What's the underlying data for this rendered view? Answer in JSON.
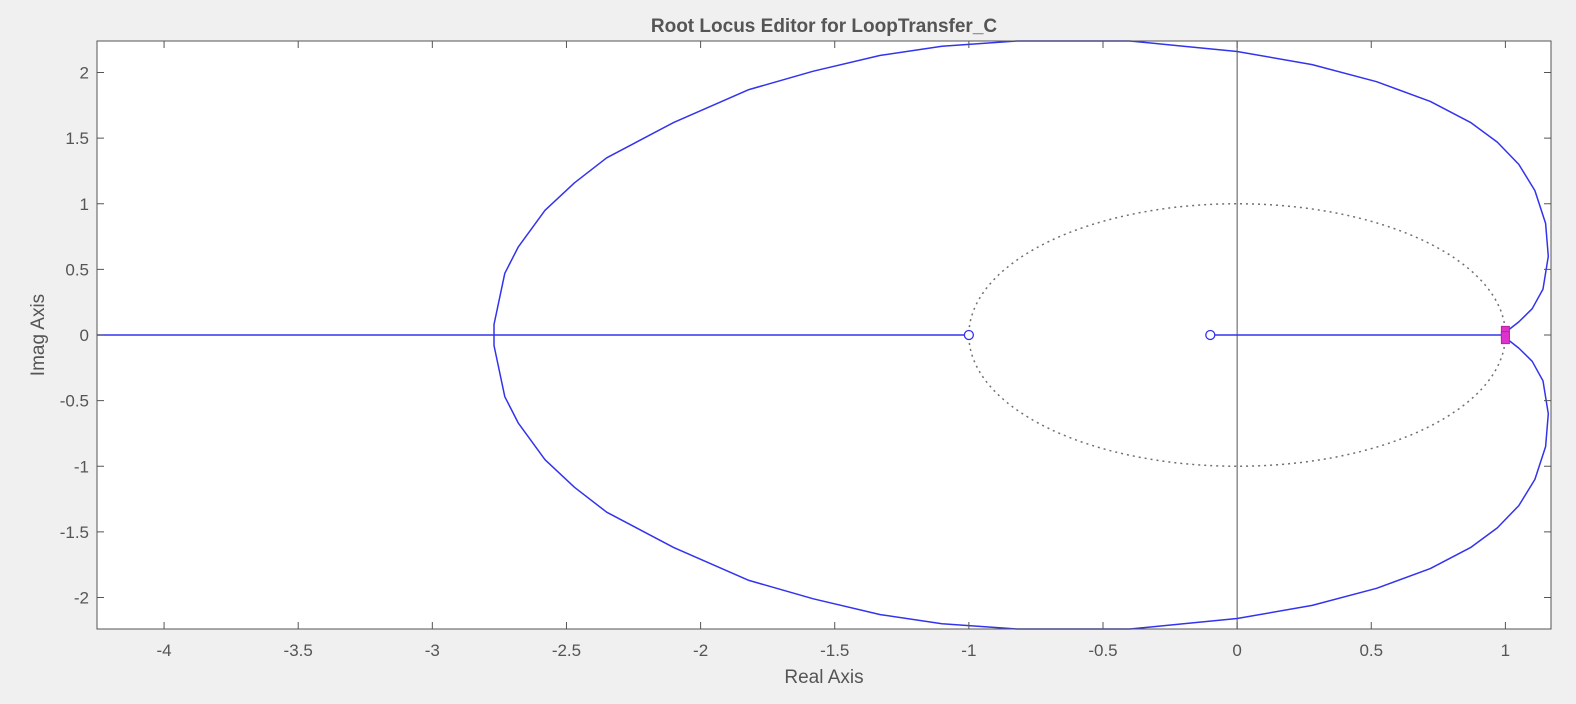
{
  "chart_data": {
    "type": "line",
    "title": "Root Locus Editor for LoopTransfer_C",
    "xlabel": "Real Axis",
    "ylabel": "Imag Axis",
    "xlim": [
      -4.25,
      1.17
    ],
    "ylim": [
      -2.24,
      2.24
    ],
    "xticks": [
      -4,
      -3.5,
      -3,
      -2.5,
      -2,
      -1.5,
      -1,
      -0.5,
      0,
      0.5,
      1
    ],
    "xtick_labels": [
      "-4",
      "-3.5",
      "-3",
      "-2.5",
      "-2",
      "-1.5",
      "-1",
      "-0.5",
      "0",
      "0.5",
      "1"
    ],
    "yticks": [
      2,
      1.5,
      1,
      0.5,
      0,
      -0.5,
      -1,
      -1.5,
      -2
    ],
    "ytick_labels": [
      "2",
      "1.5",
      "1",
      "0.5",
      "0",
      "-0.5",
      "-1",
      "-1.5",
      "-2"
    ],
    "grid": false,
    "colors": {
      "locus": "#3333ee",
      "closed_loop_poles": "#dd33cc",
      "unit_circle": "#707070",
      "axes": "#555555",
      "background": "#f0f0f0",
      "plot_area": "#ffffff"
    },
    "unit_circle": {
      "center": [
        0,
        0
      ],
      "radius": 1,
      "style": "dotted"
    },
    "imag_axis_line": {
      "x": 0
    },
    "zeros": [
      {
        "x": -1,
        "y": 0
      },
      {
        "x": -0.1,
        "y": 0
      }
    ],
    "closed_loop_poles": [
      {
        "x": 1.0,
        "y": 0.02
      },
      {
        "x": 1.0,
        "y": -0.02
      }
    ],
    "series": [
      {
        "values": [
          [
            -4.25,
            0
          ],
          [
            -1,
            0
          ]
        ]
      },
      {
        "values": [
          [
            -0.1,
            0
          ],
          [
            1.0,
            0
          ]
        ]
      },
      {
        "values": [
          [
            1.0,
            0.02
          ],
          [
            1.05,
            0.1
          ],
          [
            1.1,
            0.2
          ],
          [
            1.14,
            0.35
          ],
          [
            1.16,
            0.6
          ],
          [
            1.15,
            0.85
          ],
          [
            1.11,
            1.1
          ],
          [
            1.05,
            1.3
          ],
          [
            0.97,
            1.47
          ],
          [
            0.87,
            1.62
          ],
          [
            0.72,
            1.78
          ],
          [
            0.52,
            1.93
          ],
          [
            0.28,
            2.06
          ],
          [
            0.0,
            2.16
          ],
          [
            -0.2,
            2.2
          ],
          [
            -0.4,
            2.24
          ],
          [
            -0.82,
            2.24
          ],
          [
            -1.1,
            2.2
          ],
          [
            -1.33,
            2.13
          ],
          [
            -1.58,
            2.01
          ],
          [
            -1.82,
            1.87
          ],
          [
            -2.1,
            1.62
          ],
          [
            -2.35,
            1.35
          ],
          [
            -2.47,
            1.16
          ],
          [
            -2.58,
            0.95
          ],
          [
            -2.68,
            0.67
          ],
          [
            -2.73,
            0.47
          ],
          [
            -2.77,
            0.08
          ],
          [
            -2.77,
            0
          ]
        ]
      },
      {
        "values": [
          [
            1.0,
            -0.02
          ],
          [
            1.05,
            -0.1
          ],
          [
            1.1,
            -0.2
          ],
          [
            1.14,
            -0.35
          ],
          [
            1.16,
            -0.6
          ],
          [
            1.15,
            -0.85
          ],
          [
            1.11,
            -1.1
          ],
          [
            1.05,
            -1.3
          ],
          [
            0.97,
            -1.47
          ],
          [
            0.87,
            -1.62
          ],
          [
            0.72,
            -1.78
          ],
          [
            0.52,
            -1.93
          ],
          [
            0.28,
            -2.06
          ],
          [
            0.0,
            -2.16
          ],
          [
            -0.2,
            -2.2
          ],
          [
            -0.4,
            -2.24
          ],
          [
            -0.82,
            -2.24
          ],
          [
            -1.1,
            -2.2
          ],
          [
            -1.33,
            -2.13
          ],
          [
            -1.58,
            -2.01
          ],
          [
            -1.82,
            -1.87
          ],
          [
            -2.1,
            -1.62
          ],
          [
            -2.35,
            -1.35
          ],
          [
            -2.47,
            -1.16
          ],
          [
            -2.58,
            -0.95
          ],
          [
            -2.68,
            -0.67
          ],
          [
            -2.73,
            -0.47
          ],
          [
            -2.77,
            -0.08
          ],
          [
            -2.77,
            0
          ]
        ]
      }
    ]
  }
}
